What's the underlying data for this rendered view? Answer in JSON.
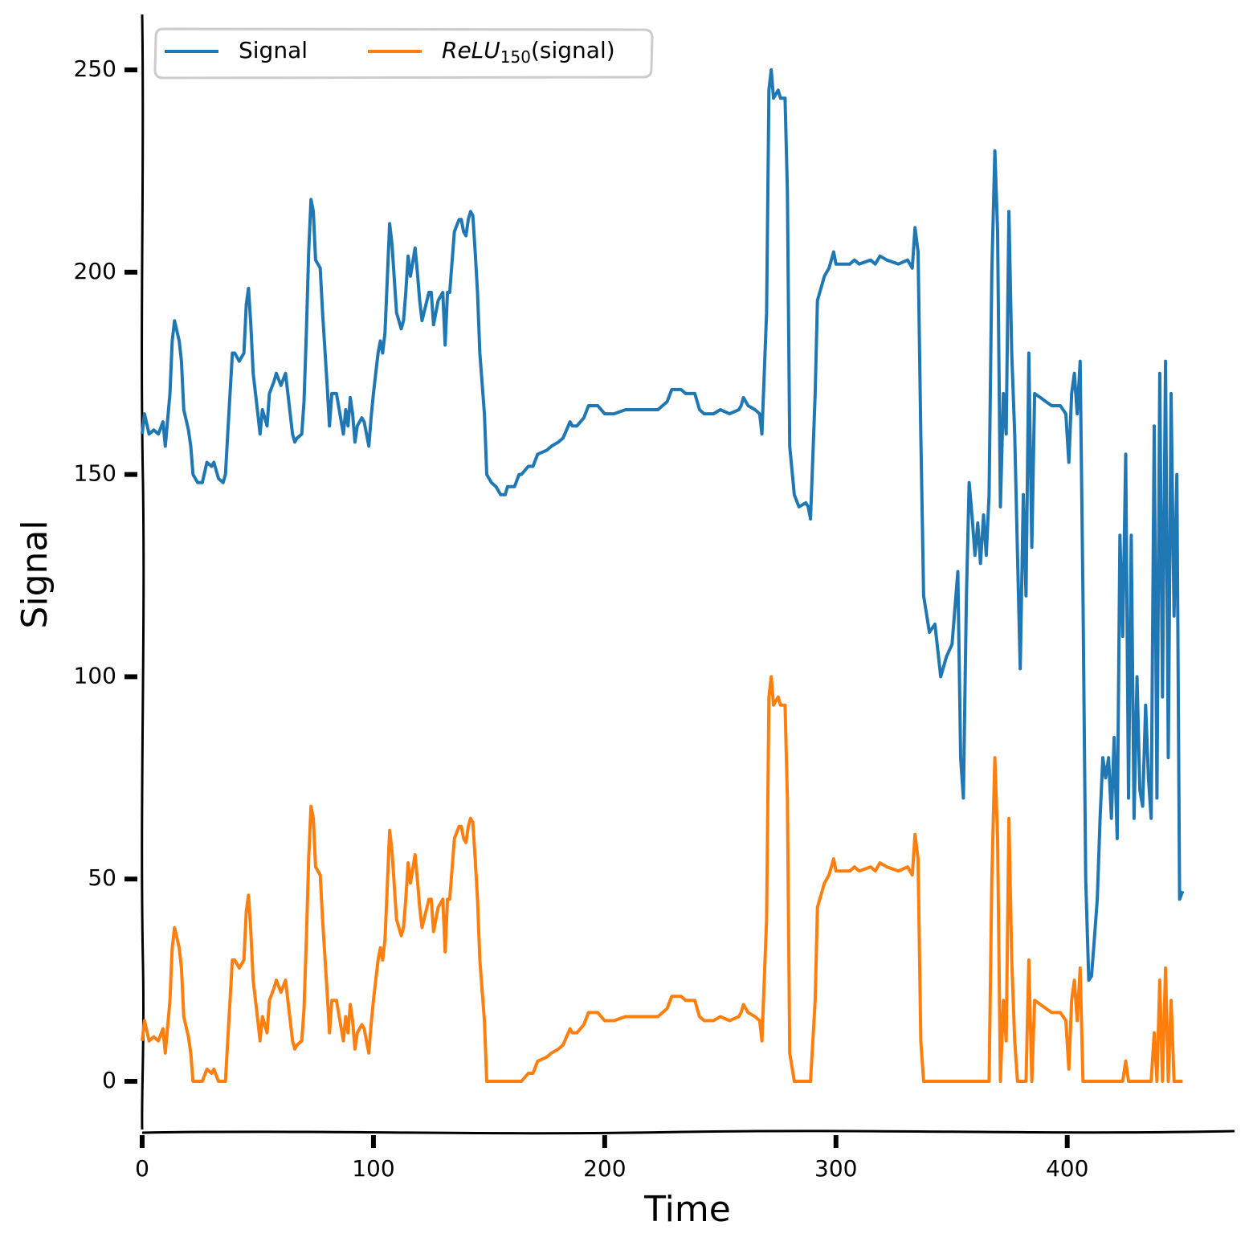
{
  "chart_data": {
    "type": "line",
    "x_label": "Time",
    "y_label": "Signal",
    "xlim": [
      0,
      472
    ],
    "ylim": [
      -12.7,
      263.7
    ],
    "xticks": [
      0,
      100,
      200,
      300,
      400
    ],
    "yticks": [
      0,
      50,
      100,
      150,
      200,
      250
    ],
    "grid": false,
    "legend": "upper left",
    "x": [
      0,
      1,
      3,
      5,
      7,
      9,
      10,
      12,
      13,
      14,
      16,
      17,
      18,
      20,
      21,
      22,
      24,
      26,
      28,
      30,
      31,
      33,
      35,
      36,
      37,
      38,
      39,
      40,
      42,
      44,
      45,
      46,
      47,
      48,
      50,
      51,
      52,
      54,
      55,
      57,
      58,
      60,
      62,
      64,
      65,
      66,
      67,
      69,
      70,
      71,
      72,
      73,
      74,
      75,
      77,
      78,
      80,
      81,
      82,
      84,
      87,
      88,
      89,
      90,
      91,
      92,
      93,
      95,
      96,
      98,
      99,
      100,
      102,
      103,
      104,
      105,
      107,
      108,
      110,
      112,
      113,
      114,
      115,
      116,
      118,
      119,
      120,
      121,
      124,
      125,
      126,
      128,
      130,
      131,
      132,
      133,
      135,
      137,
      138,
      139,
      140,
      141,
      142,
      143,
      144,
      145,
      146,
      148,
      149,
      151,
      153,
      155,
      157,
      158,
      161,
      163,
      164,
      167,
      169,
      171,
      175,
      177,
      180,
      182,
      185,
      186,
      188,
      191,
      193,
      197,
      200,
      204,
      209,
      212,
      217,
      223,
      227,
      229,
      233,
      235,
      239,
      241,
      243,
      247,
      250,
      254,
      258,
      259,
      260,
      262,
      265,
      267,
      268,
      270,
      271,
      272,
      273,
      275,
      276,
      278,
      279,
      280,
      282,
      284,
      287,
      288,
      289,
      291,
      292,
      295,
      297,
      299,
      300,
      303,
      306,
      308,
      310,
      315,
      317,
      319,
      322,
      327,
      331,
      333,
      334.2,
      335.5,
      336.7,
      337.9,
      340.4,
      342.8,
      345.3,
      347.8,
      350.2,
      352.7,
      353.9,
      355.1,
      356.4,
      357.6,
      358.8,
      360.1,
      361.3,
      362.5,
      363.8,
      365,
      366.2,
      367.4,
      368.7,
      369.9,
      371.1,
      372.4,
      373.6,
      374.8,
      376,
      377.3,
      378.5,
      379.7,
      381,
      382.2,
      383.4,
      384.7,
      385.9,
      388.4,
      390.8,
      393.3,
      394.5,
      397,
      399.4,
      400.7,
      401.9,
      403.1,
      404.3,
      405.6,
      406.8,
      408,
      409.3,
      410.5,
      411.7,
      413,
      414.2,
      415.4,
      416.6,
      417.9,
      419.1,
      420.3,
      421.6,
      422.8,
      424,
      425.3,
      426.5,
      427.7,
      428.9,
      430.2,
      431.4,
      432.6,
      433.9,
      435.1,
      436.3,
      437.6,
      438.8,
      440,
      441.2,
      442.5,
      443.7,
      444.9,
      446.2,
      447.4,
      448.6,
      449.9
    ],
    "series": [
      {
        "name": "Signal",
        "color": "#1f77b4",
        "values": [
          160,
          165,
          160,
          161,
          160,
          163,
          157,
          170,
          183,
          188,
          183,
          178,
          166,
          161,
          157,
          150,
          148,
          148,
          153,
          152,
          153,
          149,
          148,
          150,
          160,
          170,
          180,
          180,
          178,
          180,
          192,
          196,
          187,
          175,
          165,
          160,
          166,
          162,
          170,
          173,
          175,
          172,
          175,
          165,
          160,
          158,
          159,
          160,
          168,
          185,
          205,
          218,
          215,
          203,
          201,
          190,
          172,
          162,
          170,
          170,
          160,
          166,
          162,
          169,
          165,
          158,
          162,
          164,
          163,
          157,
          164,
          170,
          180,
          183,
          180,
          185,
          212,
          207,
          190,
          186,
          188,
          195,
          204,
          199,
          206,
          200,
          193,
          188,
          195,
          195,
          187,
          193,
          195,
          182,
          195,
          195,
          210,
          213,
          213,
          210,
          209,
          213,
          215,
          214,
          205,
          195,
          180,
          165,
          150,
          148,
          147,
          145,
          145,
          147,
          147,
          150,
          150,
          152,
          152,
          155,
          156,
          157,
          158,
          159,
          163,
          162,
          162,
          164,
          167,
          167,
          165,
          165,
          166,
          166,
          166,
          166,
          168,
          171,
          171,
          170,
          170,
          166,
          165,
          165,
          166,
          165,
          166,
          167,
          169,
          167,
          166,
          165,
          160,
          190,
          245,
          250,
          243,
          245,
          243,
          243,
          220,
          157,
          145,
          142,
          143,
          142,
          139,
          170,
          193,
          199,
          201,
          205,
          202,
          202,
          202,
          203,
          202,
          203,
          202,
          204,
          203,
          202,
          203,
          201,
          211,
          205,
          160,
          120,
          111,
          113,
          100,
          105,
          108,
          126,
          80,
          70,
          120,
          148,
          140,
          130,
          138,
          128,
          140,
          130,
          145,
          200,
          230,
          210,
          142,
          170,
          160,
          215,
          180,
          160,
          130,
          102,
          145,
          120,
          180,
          132,
          170,
          169,
          168,
          167,
          167,
          167,
          165,
          153,
          170,
          175,
          165,
          178,
          120,
          50,
          25,
          26,
          35,
          45,
          65,
          80,
          75,
          80,
          65,
          85,
          60,
          135,
          110,
          155,
          70,
          135,
          65,
          100,
          72,
          68,
          93,
          75,
          65,
          162,
          70,
          175,
          95,
          178,
          80,
          170,
          115,
          150,
          45,
          47
        ]
      },
      {
        "name": "ReLU150(signal)",
        "color": "#ff7f0e",
        "values": [
          10,
          15,
          10,
          11,
          10,
          13,
          7,
          20,
          33,
          38,
          33,
          28,
          16,
          11,
          7,
          0,
          0,
          0,
          3,
          2,
          3,
          0,
          0,
          0,
          10,
          20,
          30,
          30,
          28,
          30,
          42,
          46,
          37,
          25,
          15,
          10,
          16,
          12,
          20,
          23,
          25,
          22,
          25,
          15,
          10,
          8,
          9,
          10,
          18,
          35,
          55,
          68,
          65,
          53,
          51,
          40,
          22,
          12,
          20,
          20,
          10,
          16,
          12,
          19,
          15,
          8,
          12,
          14,
          13,
          7,
          14,
          20,
          30,
          33,
          30,
          35,
          62,
          57,
          40,
          36,
          38,
          45,
          54,
          49,
          56,
          50,
          43,
          38,
          45,
          45,
          37,
          43,
          45,
          32,
          45,
          45,
          60,
          63,
          63,
          60,
          59,
          63,
          65,
          64,
          55,
          45,
          30,
          15,
          0,
          0,
          0,
          0,
          0,
          0,
          0,
          0,
          0,
          2,
          2,
          5,
          6,
          7,
          8,
          9,
          13,
          12,
          12,
          14,
          17,
          17,
          15,
          15,
          16,
          16,
          16,
          16,
          18,
          21,
          21,
          20,
          20,
          16,
          15,
          15,
          16,
          15,
          16,
          17,
          19,
          17,
          16,
          15,
          10,
          40,
          95,
          100,
          93,
          95,
          93,
          93,
          70,
          7,
          0,
          0,
          0,
          0,
          0,
          20,
          43,
          49,
          51,
          55,
          52,
          52,
          52,
          53,
          52,
          53,
          52,
          54,
          53,
          52,
          53,
          51,
          61,
          55,
          10,
          0,
          0,
          0,
          0,
          0,
          0,
          0,
          0,
          0,
          0,
          0,
          0,
          0,
          0,
          0,
          0,
          0,
          0,
          50,
          80,
          60,
          0,
          20,
          10,
          65,
          30,
          10,
          0,
          0,
          0,
          0,
          30,
          0,
          20,
          19,
          18,
          17,
          17,
          17,
          15,
          3,
          20,
          25,
          15,
          28,
          0,
          0,
          0,
          0,
          0,
          0,
          0,
          0,
          0,
          0,
          0,
          0,
          0,
          0,
          0,
          5,
          0,
          0,
          0,
          0,
          0,
          0,
          0,
          0,
          0,
          12,
          0,
          25,
          0,
          28,
          0,
          20,
          0,
          0,
          0,
          0
        ]
      }
    ]
  }
}
